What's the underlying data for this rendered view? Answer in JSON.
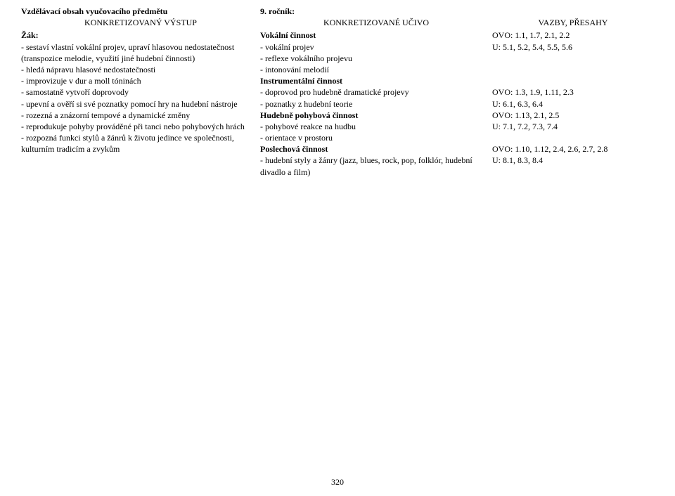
{
  "header": {
    "title_left": "Vzdělávací obsah vyučovacího předmětu",
    "title_right": "9. ročník:",
    "col1": "KONKRETIZOVANÝ VÝSTUP",
    "col2": "KONKRETIZOVANÉ UČIVO",
    "col3": "VAZBY, PŘESAHY"
  },
  "left": {
    "zak": "Žák:",
    "l1": "- sestaví vlastní vokální projev, upraví hlasovou nedostatečnost (transpozice melodie, využití jiné hudební činnosti)",
    "l2": "- hledá nápravu hlasové nedostatečnosti",
    "l3": "- improvizuje v dur a moll tóninách",
    "l4": "- samostatně vytvoří doprovody",
    "l5": "- upevní a ověří si své poznatky pomocí hry na hudební nástroje",
    "l6": "- rozezná a znázorní tempové a dynamické změny",
    "l7": "- reprodukuje pohyby prováděné při tanci nebo pohybových hrách",
    "l8": "- rozpozná funkci stylů a žánrů k životu jedince ve společnosti, kulturním tradicím a zvykům"
  },
  "mid": {
    "h1": "Vokální činnost",
    "m1": "- vokální projev",
    "m2": "- reflexe vokálního projevu",
    "m3": "- intonování melodií",
    "h2": "Instrumentální činnost",
    "m4": "- doprovod pro hudebně dramatické projevy",
    "m5": "- poznatky z hudební teorie",
    "h3": "Hudebně pohybová činnost",
    "m6": "- pohybové reakce na hudbu",
    "m7": "- orientace v prostoru",
    "h4": "Poslechová činnost",
    "m8": "- hudební styly a žánry (jazz, blues, rock, pop, folklór, hudební divadlo a film)"
  },
  "right": {
    "r1": "OVO: 1.1, 1.7, 2.1, 2.2",
    "r2": "U: 5.1, 5.2, 5.4, 5.5, 5.6",
    "r3": "OVO: 1.3, 1.9, 1.11, 2.3",
    "r4": "U: 6.1, 6.3, 6.4",
    "r5": "OVO: 1.13, 2.1, 2.5",
    "r6": "U: 7.1, 7.2, 7.3, 7.4",
    "r7": "OVO: 1.10, 1.12, 2.4, 2.6, 2.7, 2.8",
    "r8": "U: 8.1, 8.3, 8.4"
  },
  "page": "320"
}
